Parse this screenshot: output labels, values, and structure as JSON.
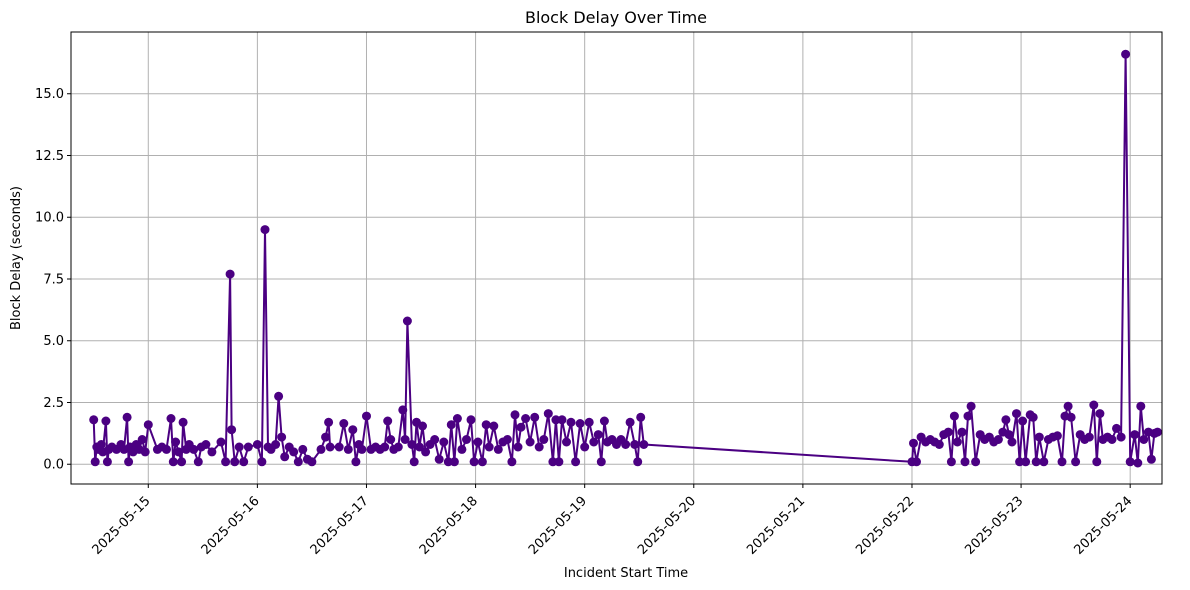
{
  "chart_data": {
    "type": "line",
    "title": "Block Delay Over Time",
    "xlabel": "Incident Start Time",
    "ylabel": "Block Delay (seconds)",
    "x_tick_labels": [
      "2025-05-15",
      "2025-05-16",
      "2025-05-17",
      "2025-05-18",
      "2025-05-19",
      "2025-05-20",
      "2025-05-21",
      "2025-05-22",
      "2025-05-23",
      "2025-05-24"
    ],
    "y_tick_labels": [
      "0.0",
      "2.5",
      "5.0",
      "7.5",
      "10.0",
      "12.5",
      "15.0"
    ],
    "xlim": [
      "2025-05-14 07:00",
      "2025-05-24 07:00"
    ],
    "ylim": [
      -0.8,
      17.5
    ],
    "grid": true,
    "colors": {
      "series": "#4b0082",
      "grid": "#b0b0b0",
      "axes": "#000000",
      "background": "#ffffff"
    },
    "series": [
      {
        "marker": "circle",
        "points": [
          [
            "2025-05-14 12:00",
            1.8
          ],
          [
            "2025-05-14 12:20",
            0.1
          ],
          [
            "2025-05-14 12:40",
            0.7
          ],
          [
            "2025-05-14 13:00",
            0.6
          ],
          [
            "2025-05-14 13:40",
            0.8
          ],
          [
            "2025-05-14 14:00",
            0.5
          ],
          [
            "2025-05-14 14:40",
            1.75
          ],
          [
            "2025-05-14 15:00",
            0.1
          ],
          [
            "2025-05-14 15:20",
            0.6
          ],
          [
            "2025-05-14 16:00",
            0.7
          ],
          [
            "2025-05-14 17:00",
            0.6
          ],
          [
            "2025-05-14 18:00",
            0.8
          ],
          [
            "2025-05-14 18:40",
            0.6
          ],
          [
            "2025-05-14 19:20",
            1.9
          ],
          [
            "2025-05-14 19:40",
            0.1
          ],
          [
            "2025-05-14 20:00",
            0.7
          ],
          [
            "2025-05-14 20:40",
            0.5
          ],
          [
            "2025-05-14 21:20",
            0.8
          ],
          [
            "2025-05-14 22:00",
            0.6
          ],
          [
            "2025-05-14 22:40",
            1.0
          ],
          [
            "2025-05-14 23:20",
            0.5
          ],
          [
            "2025-05-15 00:00",
            1.6
          ],
          [
            "2025-05-15 02:00",
            0.6
          ],
          [
            "2025-05-15 03:00",
            0.7
          ],
          [
            "2025-05-15 04:00",
            0.6
          ],
          [
            "2025-05-15 05:00",
            1.85
          ],
          [
            "2025-05-15 05:30",
            0.1
          ],
          [
            "2025-05-15 06:00",
            0.9
          ],
          [
            "2025-05-15 06:40",
            0.5
          ],
          [
            "2025-05-15 07:20",
            0.1
          ],
          [
            "2025-05-15 07:40",
            1.7
          ],
          [
            "2025-05-15 08:20",
            0.6
          ],
          [
            "2025-05-15 09:00",
            0.8
          ],
          [
            "2025-05-15 10:00",
            0.6
          ],
          [
            "2025-05-15 11:00",
            0.1
          ],
          [
            "2025-05-15 11:40",
            0.7
          ],
          [
            "2025-05-15 12:40",
            0.8
          ],
          [
            "2025-05-15 14:00",
            0.5
          ],
          [
            "2025-05-15 16:00",
            0.9
          ],
          [
            "2025-05-15 17:00",
            0.1
          ],
          [
            "2025-05-15 18:00",
            7.7
          ],
          [
            "2025-05-15 18:20",
            1.4
          ],
          [
            "2025-05-15 19:00",
            0.1
          ],
          [
            "2025-05-15 20:00",
            0.7
          ],
          [
            "2025-05-15 21:00",
            0.1
          ],
          [
            "2025-05-15 22:00",
            0.7
          ],
          [
            "2025-05-16 00:00",
            0.8
          ],
          [
            "2025-05-16 01:00",
            0.1
          ],
          [
            "2025-05-16 01:40",
            9.5
          ],
          [
            "2025-05-16 02:20",
            0.7
          ],
          [
            "2025-05-16 03:00",
            0.6
          ],
          [
            "2025-05-16 04:00",
            0.8
          ],
          [
            "2025-05-16 04:40",
            2.75
          ],
          [
            "2025-05-16 05:20",
            1.1
          ],
          [
            "2025-05-16 06:00",
            0.3
          ],
          [
            "2025-05-16 07:00",
            0.7
          ],
          [
            "2025-05-16 08:00",
            0.5
          ],
          [
            "2025-05-16 09:00",
            0.1
          ],
          [
            "2025-05-16 10:00",
            0.6
          ],
          [
            "2025-05-16 11:00",
            0.2
          ],
          [
            "2025-05-16 12:00",
            0.1
          ],
          [
            "2025-05-16 14:00",
            0.6
          ],
          [
            "2025-05-16 15:00",
            1.1
          ],
          [
            "2025-05-16 15:40",
            1.7
          ],
          [
            "2025-05-16 16:00",
            0.7
          ],
          [
            "2025-05-16 18:00",
            0.7
          ],
          [
            "2025-05-16 19:00",
            1.65
          ],
          [
            "2025-05-16 20:00",
            0.6
          ],
          [
            "2025-05-16 21:00",
            1.4
          ],
          [
            "2025-05-16 21:40",
            0.1
          ],
          [
            "2025-05-16 22:20",
            0.8
          ],
          [
            "2025-05-16 23:00",
            0.6
          ],
          [
            "2025-05-17 00:00",
            1.95
          ],
          [
            "2025-05-17 01:00",
            0.6
          ],
          [
            "2025-05-17 02:00",
            0.7
          ],
          [
            "2025-05-17 03:00",
            0.6
          ],
          [
            "2025-05-17 04:00",
            0.7
          ],
          [
            "2025-05-17 04:40",
            1.75
          ],
          [
            "2025-05-17 05:20",
            1.0
          ],
          [
            "2025-05-17 06:00",
            0.6
          ],
          [
            "2025-05-17 07:00",
            0.7
          ],
          [
            "2025-05-17 08:00",
            2.2
          ],
          [
            "2025-05-17 08:30",
            1.0
          ],
          [
            "2025-05-17 09:00",
            5.8
          ],
          [
            "2025-05-17 10:00",
            0.8
          ],
          [
            "2025-05-17 10:30",
            0.1
          ],
          [
            "2025-05-17 11:00",
            1.7
          ],
          [
            "2025-05-17 11:40",
            0.7
          ],
          [
            "2025-05-17 12:20",
            1.55
          ],
          [
            "2025-05-17 13:00",
            0.5
          ],
          [
            "2025-05-17 14:00",
            0.8
          ],
          [
            "2025-05-17 15:00",
            1.0
          ],
          [
            "2025-05-17 16:00",
            0.2
          ],
          [
            "2025-05-17 17:00",
            0.9
          ],
          [
            "2025-05-17 18:00",
            0.1
          ],
          [
            "2025-05-17 18:40",
            1.6
          ],
          [
            "2025-05-17 19:20",
            0.1
          ],
          [
            "2025-05-17 20:00",
            1.85
          ],
          [
            "2025-05-17 21:00",
            0.6
          ],
          [
            "2025-05-17 22:00",
            1.0
          ],
          [
            "2025-05-17 23:00",
            1.8
          ],
          [
            "2025-05-17 23:40",
            0.1
          ],
          [
            "2025-05-18 00:30",
            0.9
          ],
          [
            "2025-05-18 01:30",
            0.1
          ],
          [
            "2025-05-18 02:20",
            1.6
          ],
          [
            "2025-05-18 03:00",
            0.7
          ],
          [
            "2025-05-18 04:00",
            1.55
          ],
          [
            "2025-05-18 05:00",
            0.6
          ],
          [
            "2025-05-18 06:00",
            0.9
          ],
          [
            "2025-05-18 07:00",
            1.0
          ],
          [
            "2025-05-18 08:00",
            0.1
          ],
          [
            "2025-05-18 08:40",
            2.0
          ],
          [
            "2025-05-18 09:20",
            0.7
          ],
          [
            "2025-05-18 10:00",
            1.5
          ],
          [
            "2025-05-18 11:00",
            1.85
          ],
          [
            "2025-05-18 12:00",
            0.9
          ],
          [
            "2025-05-18 13:00",
            1.9
          ],
          [
            "2025-05-18 14:00",
            0.7
          ],
          [
            "2025-05-18 15:00",
            1.0
          ],
          [
            "2025-05-18 16:00",
            2.05
          ],
          [
            "2025-05-18 17:00",
            0.1
          ],
          [
            "2025-05-18 17:40",
            1.8
          ],
          [
            "2025-05-18 18:20",
            0.1
          ],
          [
            "2025-05-18 19:00",
            1.8
          ],
          [
            "2025-05-18 20:00",
            0.9
          ],
          [
            "2025-05-18 21:00",
            1.7
          ],
          [
            "2025-05-18 22:00",
            0.1
          ],
          [
            "2025-05-18 23:00",
            1.65
          ],
          [
            "2025-05-19 00:00",
            0.7
          ],
          [
            "2025-05-19 01:00",
            1.7
          ],
          [
            "2025-05-19 02:00",
            0.9
          ],
          [
            "2025-05-19 03:00",
            1.2
          ],
          [
            "2025-05-19 03:40",
            0.1
          ],
          [
            "2025-05-19 04:20",
            1.75
          ],
          [
            "2025-05-19 05:00",
            0.9
          ],
          [
            "2025-05-19 06:00",
            1.0
          ],
          [
            "2025-05-19 07:00",
            0.8
          ],
          [
            "2025-05-19 08:00",
            1.0
          ],
          [
            "2025-05-19 09:00",
            0.8
          ],
          [
            "2025-05-19 10:00",
            1.7
          ],
          [
            "2025-05-19 11:00",
            0.8
          ],
          [
            "2025-05-19 11:40",
            0.1
          ],
          [
            "2025-05-19 12:20",
            1.9
          ],
          [
            "2025-05-19 13:00",
            0.8
          ],
          [
            "2025-05-22 00:00",
            0.1
          ],
          [
            "2025-05-22 00:20",
            0.85
          ],
          [
            "2025-05-22 01:00",
            0.1
          ],
          [
            "2025-05-22 02:00",
            1.1
          ],
          [
            "2025-05-22 03:00",
            0.9
          ],
          [
            "2025-05-22 04:00",
            1.0
          ],
          [
            "2025-05-22 05:00",
            0.9
          ],
          [
            "2025-05-22 06:00",
            0.8
          ],
          [
            "2025-05-22 07:00",
            1.2
          ],
          [
            "2025-05-22 08:00",
            1.3
          ],
          [
            "2025-05-22 08:40",
            0.1
          ],
          [
            "2025-05-22 09:20",
            1.95
          ],
          [
            "2025-05-22 10:00",
            0.9
          ],
          [
            "2025-05-22 11:00",
            1.3
          ],
          [
            "2025-05-22 11:40",
            0.1
          ],
          [
            "2025-05-22 12:20",
            1.95
          ],
          [
            "2025-05-22 13:00",
            2.35
          ],
          [
            "2025-05-22 14:00",
            0.1
          ],
          [
            "2025-05-22 15:00",
            1.2
          ],
          [
            "2025-05-22 16:00",
            1.0
          ],
          [
            "2025-05-22 17:00",
            1.1
          ],
          [
            "2025-05-22 18:00",
            0.9
          ],
          [
            "2025-05-22 19:00",
            1.0
          ],
          [
            "2025-05-22 20:00",
            1.3
          ],
          [
            "2025-05-22 20:40",
            1.8
          ],
          [
            "2025-05-22 21:20",
            1.2
          ],
          [
            "2025-05-22 22:00",
            0.9
          ],
          [
            "2025-05-22 23:00",
            2.05
          ],
          [
            "2025-05-22 23:40",
            0.1
          ],
          [
            "2025-05-23 00:20",
            1.75
          ],
          [
            "2025-05-23 01:00",
            0.1
          ],
          [
            "2025-05-23 02:00",
            2.0
          ],
          [
            "2025-05-23 02:40",
            1.9
          ],
          [
            "2025-05-23 03:20",
            0.1
          ],
          [
            "2025-05-23 04:00",
            1.1
          ],
          [
            "2025-05-23 05:00",
            0.1
          ],
          [
            "2025-05-23 06:00",
            1.0
          ],
          [
            "2025-05-23 07:00",
            1.1
          ],
          [
            "2025-05-23 08:00",
            1.15
          ],
          [
            "2025-05-23 09:00",
            0.1
          ],
          [
            "2025-05-23 09:40",
            1.95
          ],
          [
            "2025-05-23 10:20",
            2.35
          ],
          [
            "2025-05-23 11:00",
            1.9
          ],
          [
            "2025-05-23 12:00",
            0.1
          ],
          [
            "2025-05-23 13:00",
            1.2
          ],
          [
            "2025-05-23 14:00",
            1.0
          ],
          [
            "2025-05-23 15:00",
            1.1
          ],
          [
            "2025-05-23 16:00",
            2.4
          ],
          [
            "2025-05-23 16:40",
            0.1
          ],
          [
            "2025-05-23 17:20",
            2.05
          ],
          [
            "2025-05-23 18:00",
            1.0
          ],
          [
            "2025-05-23 19:00",
            1.1
          ],
          [
            "2025-05-23 20:00",
            1.0
          ],
          [
            "2025-05-23 21:00",
            1.45
          ],
          [
            "2025-05-23 22:00",
            1.1
          ],
          [
            "2025-05-23 23:00",
            16.6
          ],
          [
            "2025-05-24 00:00",
            0.1
          ],
          [
            "2025-05-24 01:00",
            1.2
          ],
          [
            "2025-05-24 01:40",
            0.05
          ],
          [
            "2025-05-24 02:20",
            2.35
          ],
          [
            "2025-05-24 03:00",
            1.0
          ],
          [
            "2025-05-24 04:00",
            1.3
          ],
          [
            "2025-05-24 04:40",
            0.2
          ],
          [
            "2025-05-24 05:20",
            1.25
          ],
          [
            "2025-05-24 06:00",
            1.3
          ]
        ]
      }
    ]
  }
}
